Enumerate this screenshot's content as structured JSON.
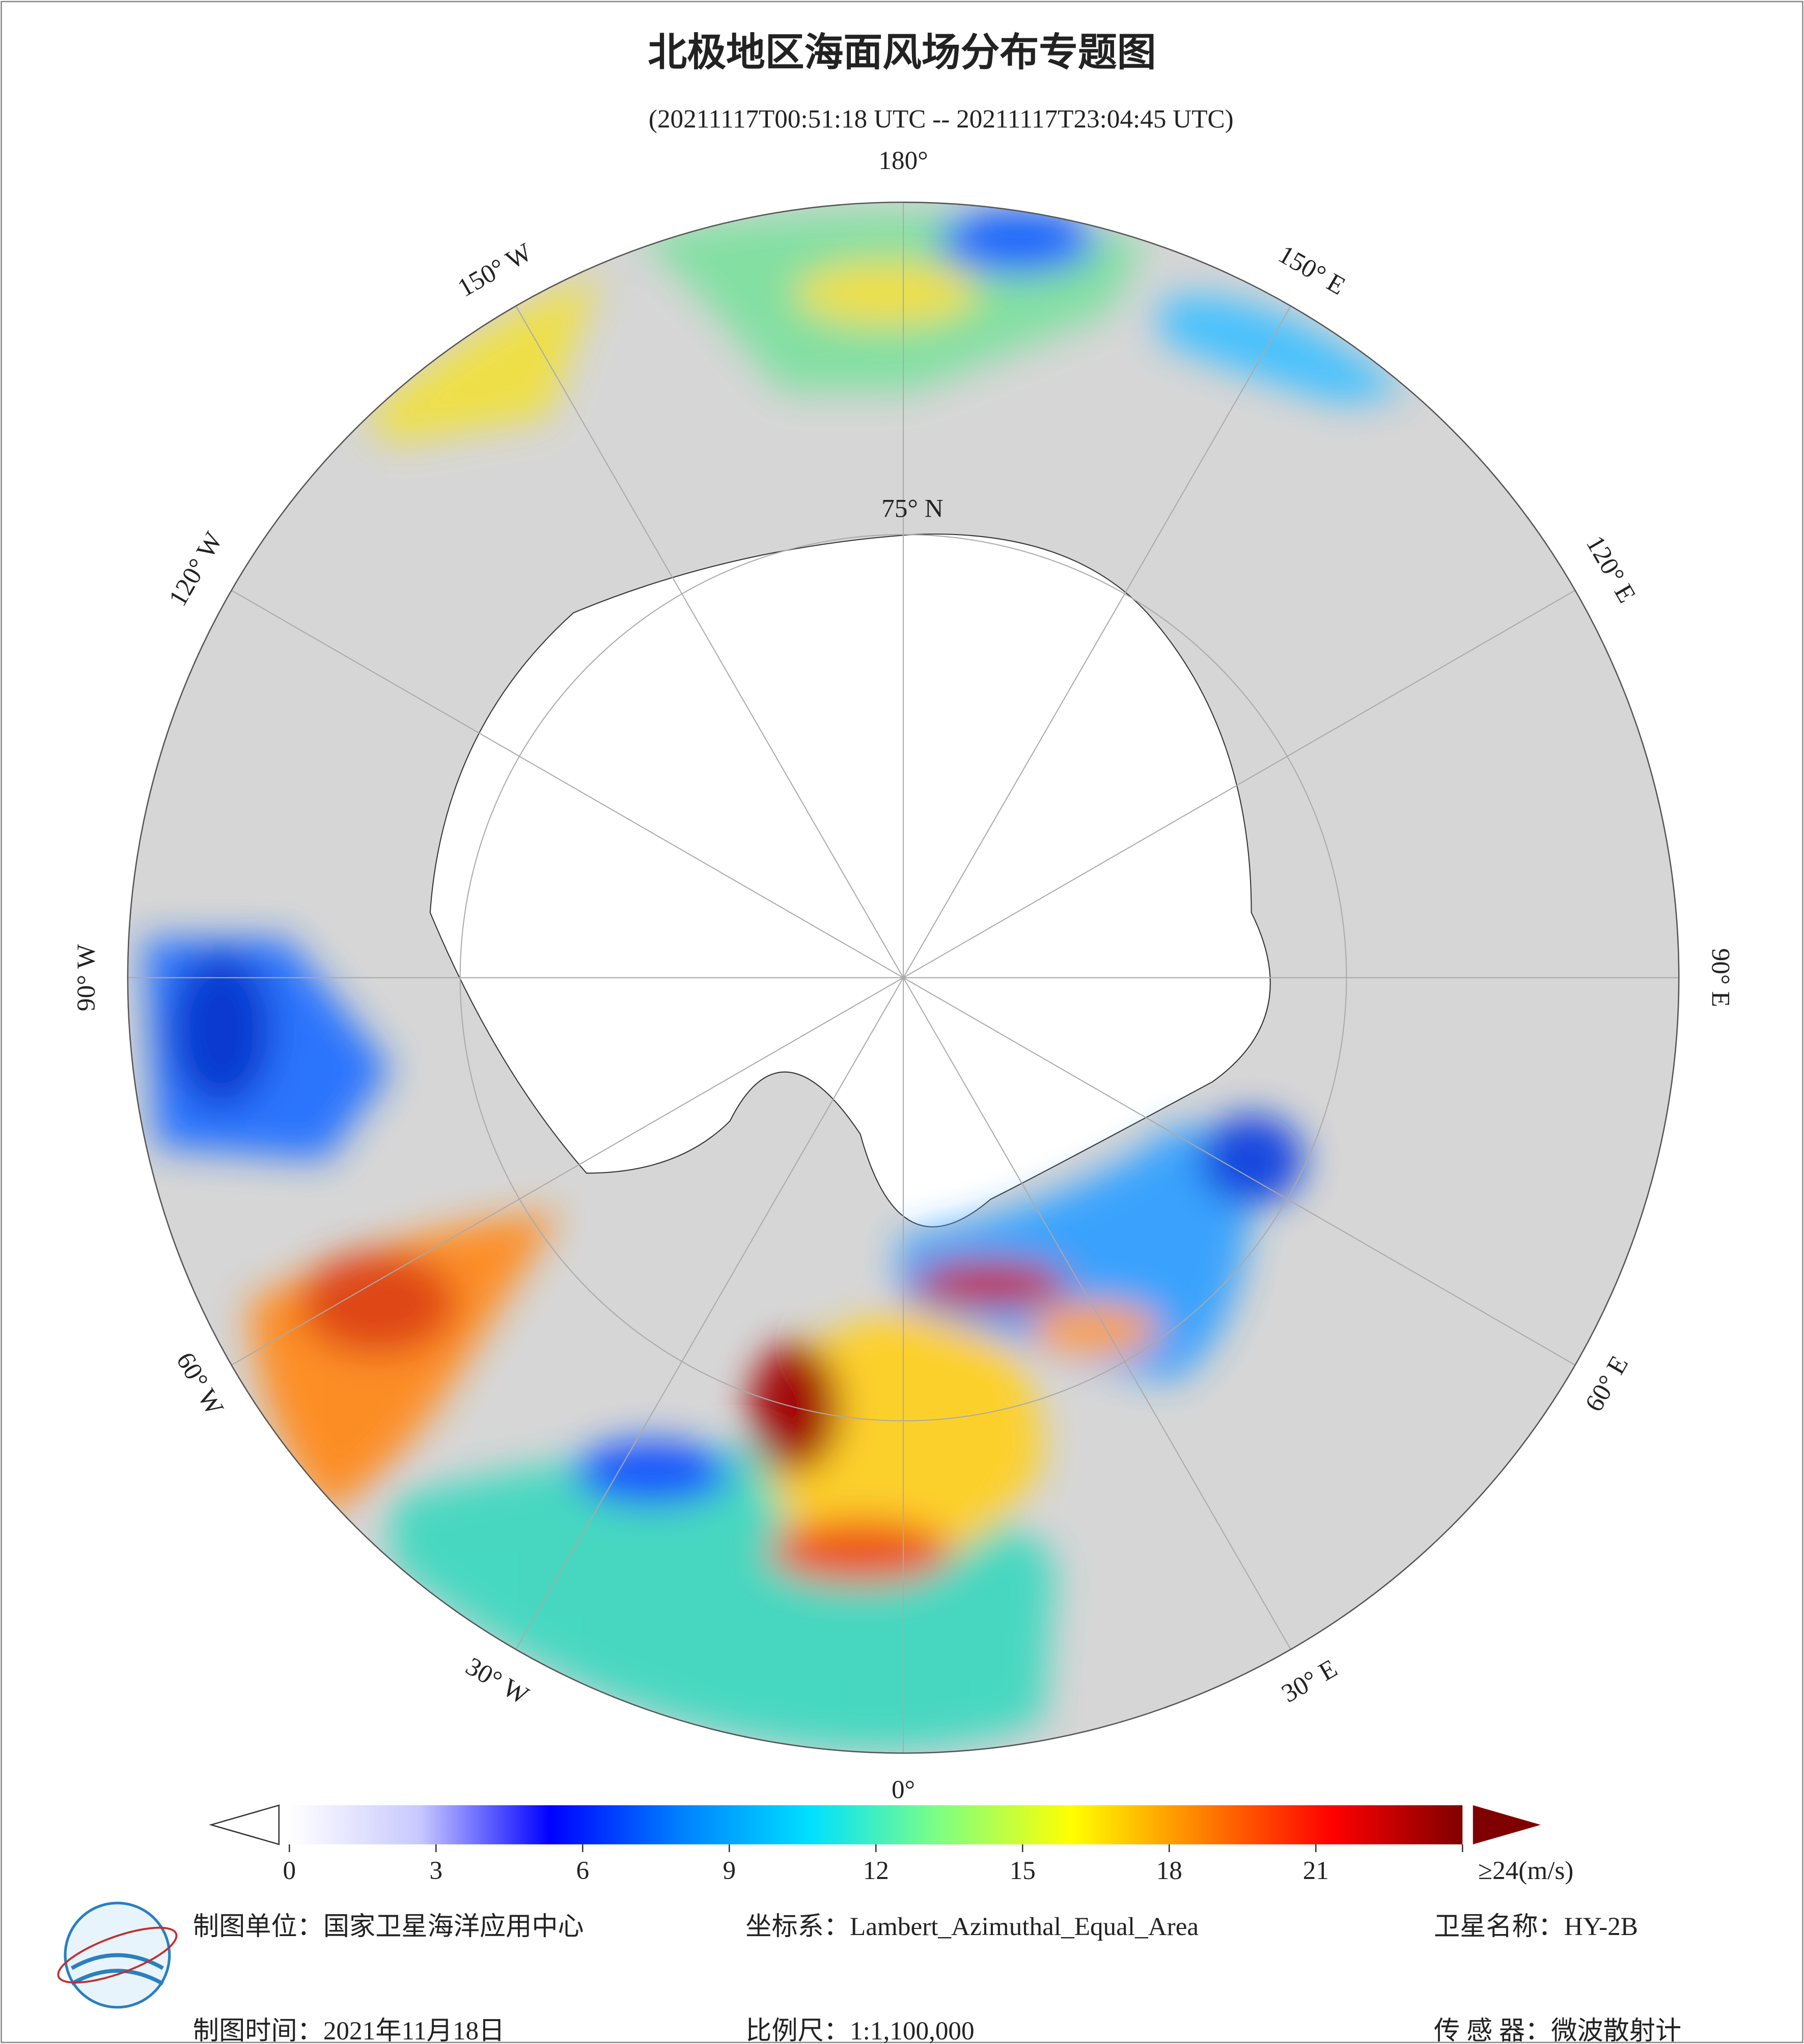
{
  "title": "北极地区海面风场分布专题图",
  "subtitle": "(20211117T00:51:18 UTC -- 20211117T23:04:45 UTC)",
  "graticule": {
    "meridians": [
      "180°",
      "150° E",
      "120° E",
      "90° E",
      "60° E",
      "30° E",
      "0°",
      "30° W",
      "60° W",
      "90° W",
      "120° W",
      "150° W"
    ],
    "parallel": "75° N"
  },
  "colorbar": {
    "lim": [
      0,
      24
    ],
    "ticks": [
      0,
      3,
      6,
      9,
      12,
      15,
      18,
      21,
      {
        "value": 24,
        "label": "≥24(m/s)"
      }
    ],
    "colors": [
      "#ffffff",
      "#c8c8ff",
      "#0000ff",
      "#0080ff",
      "#00e0ff",
      "#80ff80",
      "#ffff00",
      "#ff8000",
      "#ff0000",
      "#800000"
    ]
  },
  "footer": [
    [
      "制图单位：国家卫星海洋应用中心",
      "坐标系：Lambert_Azimuthal_Equal_Area",
      "卫星名称：HY-2B"
    ],
    [
      "制图时间：2021年11月18日",
      "比例尺：1:1,100,000",
      "传 感 器：微波散射计"
    ]
  ]
}
